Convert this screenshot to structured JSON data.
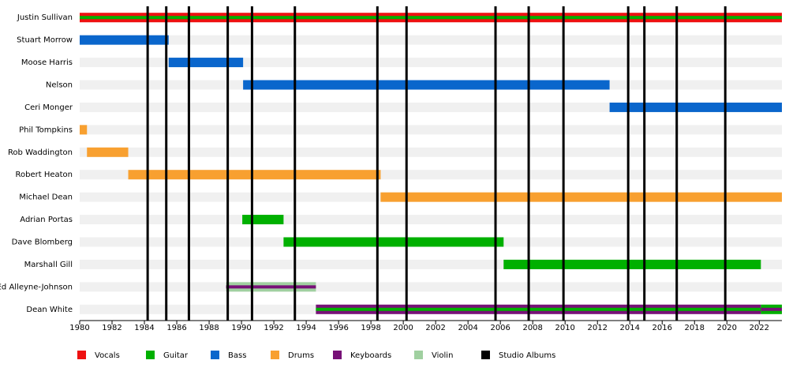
{
  "chart_data": {
    "type": "timeline",
    "xlim": [
      1980,
      2023.4
    ],
    "xticks": [
      1980,
      1982,
      1984,
      1986,
      1988,
      1990,
      1992,
      1994,
      1996,
      1998,
      2000,
      2002,
      2004,
      2006,
      2008,
      2010,
      2012,
      2014,
      2016,
      2018,
      2020,
      2022
    ],
    "series": [
      {
        "name": "Vocals",
        "color": "#ee1111"
      },
      {
        "name": "Guitar",
        "color": "#00b000"
      },
      {
        "name": "Bass",
        "color": "#0a66cc"
      },
      {
        "name": "Drums",
        "color": "#f8a030"
      },
      {
        "name": "Keyboards",
        "color": "#771177"
      },
      {
        "name": "Violin",
        "color": "#a0d0a0"
      }
    ],
    "albums": {
      "name": "Studio Albums",
      "color": "#000000",
      "values": [
        1984.2,
        1985.35,
        1986.75,
        1989.15,
        1990.65,
        1993.3,
        1998.4,
        2000.2,
        2005.7,
        2007.75,
        2009.9,
        2013.9,
        2014.9,
        2016.9,
        2019.9
      ]
    },
    "members": [
      {
        "name": "Justin Sullivan",
        "spans": [
          {
            "role": "Vocals",
            "start": 1980,
            "end": 2023.4
          },
          {
            "role": "Guitar",
            "start": 1980,
            "end": 2023.4,
            "inner": true
          }
        ]
      },
      {
        "name": "Stuart Morrow",
        "spans": [
          {
            "role": "Bass",
            "start": 1980,
            "end": 1985.5
          }
        ]
      },
      {
        "name": "Moose Harris",
        "spans": [
          {
            "role": "Bass",
            "start": 1985.5,
            "end": 1990.1
          }
        ]
      },
      {
        "name": "Nelson",
        "spans": [
          {
            "role": "Bass",
            "start": 1990.1,
            "end": 2012.75
          }
        ]
      },
      {
        "name": "Ceri Monger",
        "spans": [
          {
            "role": "Bass",
            "start": 2012.75,
            "end": 2023.4
          }
        ]
      },
      {
        "name": "Phil Tompkins",
        "spans": [
          {
            "role": "Drums",
            "start": 1980,
            "end": 1980.45
          }
        ]
      },
      {
        "name": "Rob Waddington",
        "spans": [
          {
            "role": "Drums",
            "start": 1980.45,
            "end": 1983
          }
        ]
      },
      {
        "name": "Robert Heaton",
        "spans": [
          {
            "role": "Drums",
            "start": 1983,
            "end": 1998.6
          }
        ]
      },
      {
        "name": "Michael Dean",
        "spans": [
          {
            "role": "Drums",
            "start": 1998.6,
            "end": 2023.4
          }
        ]
      },
      {
        "name": "Adrian Portas",
        "spans": [
          {
            "role": "Guitar",
            "start": 1990.05,
            "end": 1992.6
          }
        ]
      },
      {
        "name": "Dave Blomberg",
        "spans": [
          {
            "role": "Guitar",
            "start": 1992.6,
            "end": 2006.2
          }
        ]
      },
      {
        "name": "Marshall Gill",
        "spans": [
          {
            "role": "Guitar",
            "start": 2006.2,
            "end": 2022.1
          }
        ]
      },
      {
        "name": "Ed Alleyne-Johnson",
        "spans": [
          {
            "role": "Violin",
            "start": 1989.05,
            "end": 1994.6
          },
          {
            "role": "Keyboards",
            "start": 1989.05,
            "end": 1994.6,
            "inner": true
          }
        ]
      },
      {
        "name": "Dean White",
        "spans": [
          {
            "role": "Keyboards",
            "start": 1994.6,
            "end": 2022.1
          },
          {
            "role": "Guitar",
            "start": 1994.6,
            "end": 2022.1,
            "inner": true
          },
          {
            "role": "Guitar",
            "start": 2022.1,
            "end": 2023.4
          },
          {
            "role": "Keyboards",
            "start": 2022.1,
            "end": 2023.4,
            "inner": true
          }
        ]
      }
    ]
  }
}
